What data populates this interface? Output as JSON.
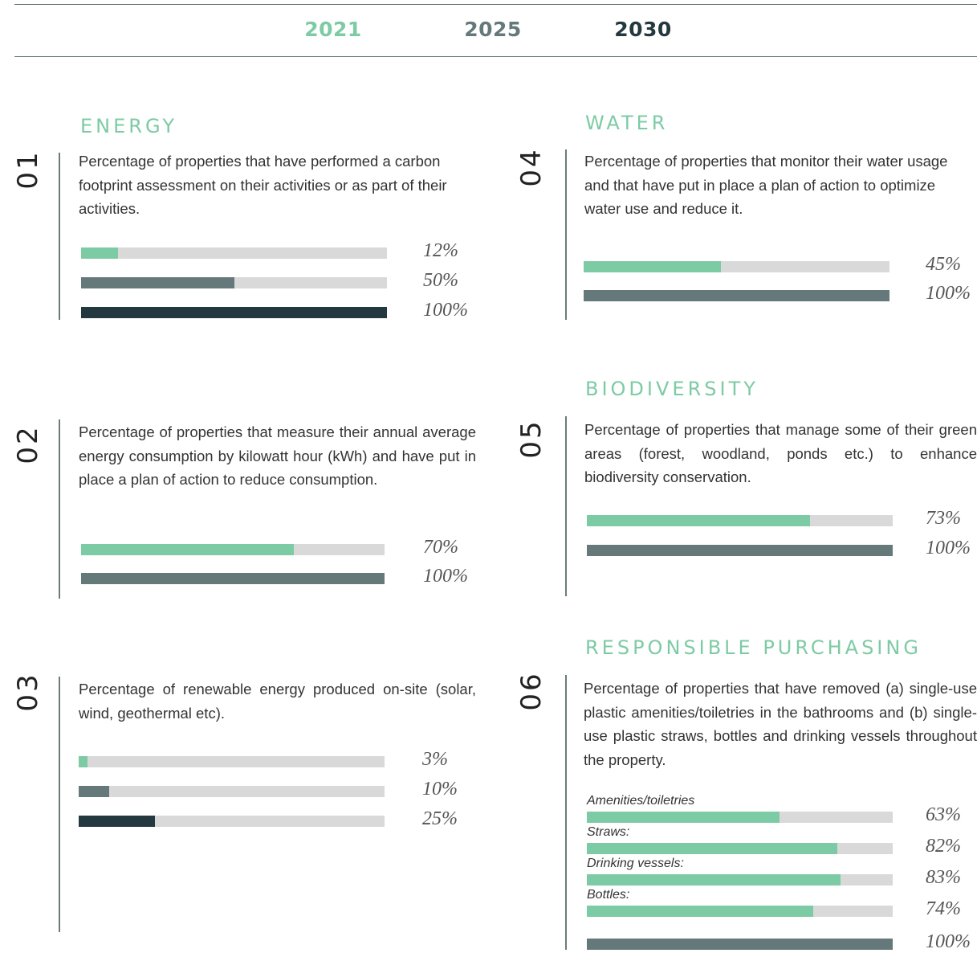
{
  "legend": [
    {
      "name": "2021",
      "color": "#7dcba4"
    },
    {
      "name": "2025",
      "color": "#66797a"
    },
    {
      "name": "2030",
      "color": "#23393f"
    }
  ],
  "xlim": [
    0,
    100
  ],
  "sections": [
    {
      "number": "01",
      "title": "ENERGY",
      "description": "Percentage of properties that have performed a carbon footprint assessment on their activities or as part of their activities.",
      "bars": [
        {
          "value": 12,
          "label": "12%",
          "color": "#7dcba4"
        },
        {
          "value": 50,
          "label": "50%",
          "color": "#66797a"
        },
        {
          "value": 100,
          "label": "100%",
          "color": "#23393f"
        }
      ]
    },
    {
      "number": "02",
      "description": "Percentage of properties that measure their annual average energy consumption by kilowatt hour (kWh) and have put in place a plan of action to reduce consumption.",
      "bars": [
        {
          "value": 70,
          "label": "70%",
          "color": "#7dcba4"
        },
        {
          "value": 100,
          "label": "100%",
          "color": "#66797a"
        }
      ]
    },
    {
      "number": "03",
      "description": "Percentage of renewable energy produced on-site (solar, wind, geothermal etc).",
      "bars": [
        {
          "value": 3,
          "label": "3%",
          "color": "#7dcba4"
        },
        {
          "value": 10,
          "label": "10%",
          "color": "#66797a"
        },
        {
          "value": 25,
          "label": "25%",
          "color": "#23393f"
        }
      ]
    },
    {
      "number": "04",
      "title": "WATER",
      "description": "Percentage of properties that monitor their water usage and that have put in place a plan of action to optimize water use and reduce it.",
      "bars": [
        {
          "value": 45,
          "label": "45%",
          "color": "#7dcba4"
        },
        {
          "value": 100,
          "label": "100%",
          "color": "#66797a"
        }
      ]
    },
    {
      "number": "05",
      "title": "BIODIVERSITY",
      "description": "Percentage of properties that manage some of their green areas (forest, woodland, ponds etc.) to enhance biodiversity conservation.",
      "bars": [
        {
          "value": 73,
          "label": "73%",
          "color": "#7dcba4"
        },
        {
          "value": 100,
          "label": "100%",
          "color": "#66797a"
        }
      ]
    },
    {
      "number": "06",
      "title": "RESPONSIBLE PURCHASING",
      "description": "Percentage of properties that have removed (a) single-use plastic amenities/toiletries in the bathrooms and (b) single-use plastic straws, bottles and drinking vessels throughout the property.",
      "bars": [
        {
          "name": "Amenities/toiletries",
          "value": 63,
          "label": "63%",
          "color": "#7dcba4"
        },
        {
          "name": "Straws:",
          "value": 82,
          "label": "82%",
          "color": "#7dcba4"
        },
        {
          "name": "Drinking vessels:",
          "value": 83,
          "label": "83%",
          "color": "#7dcba4"
        },
        {
          "name": "Bottles:",
          "value": 74,
          "label": "74%",
          "color": "#7dcba4"
        },
        {
          "value": 100,
          "label": "100%",
          "color": "#66797a"
        }
      ]
    }
  ]
}
